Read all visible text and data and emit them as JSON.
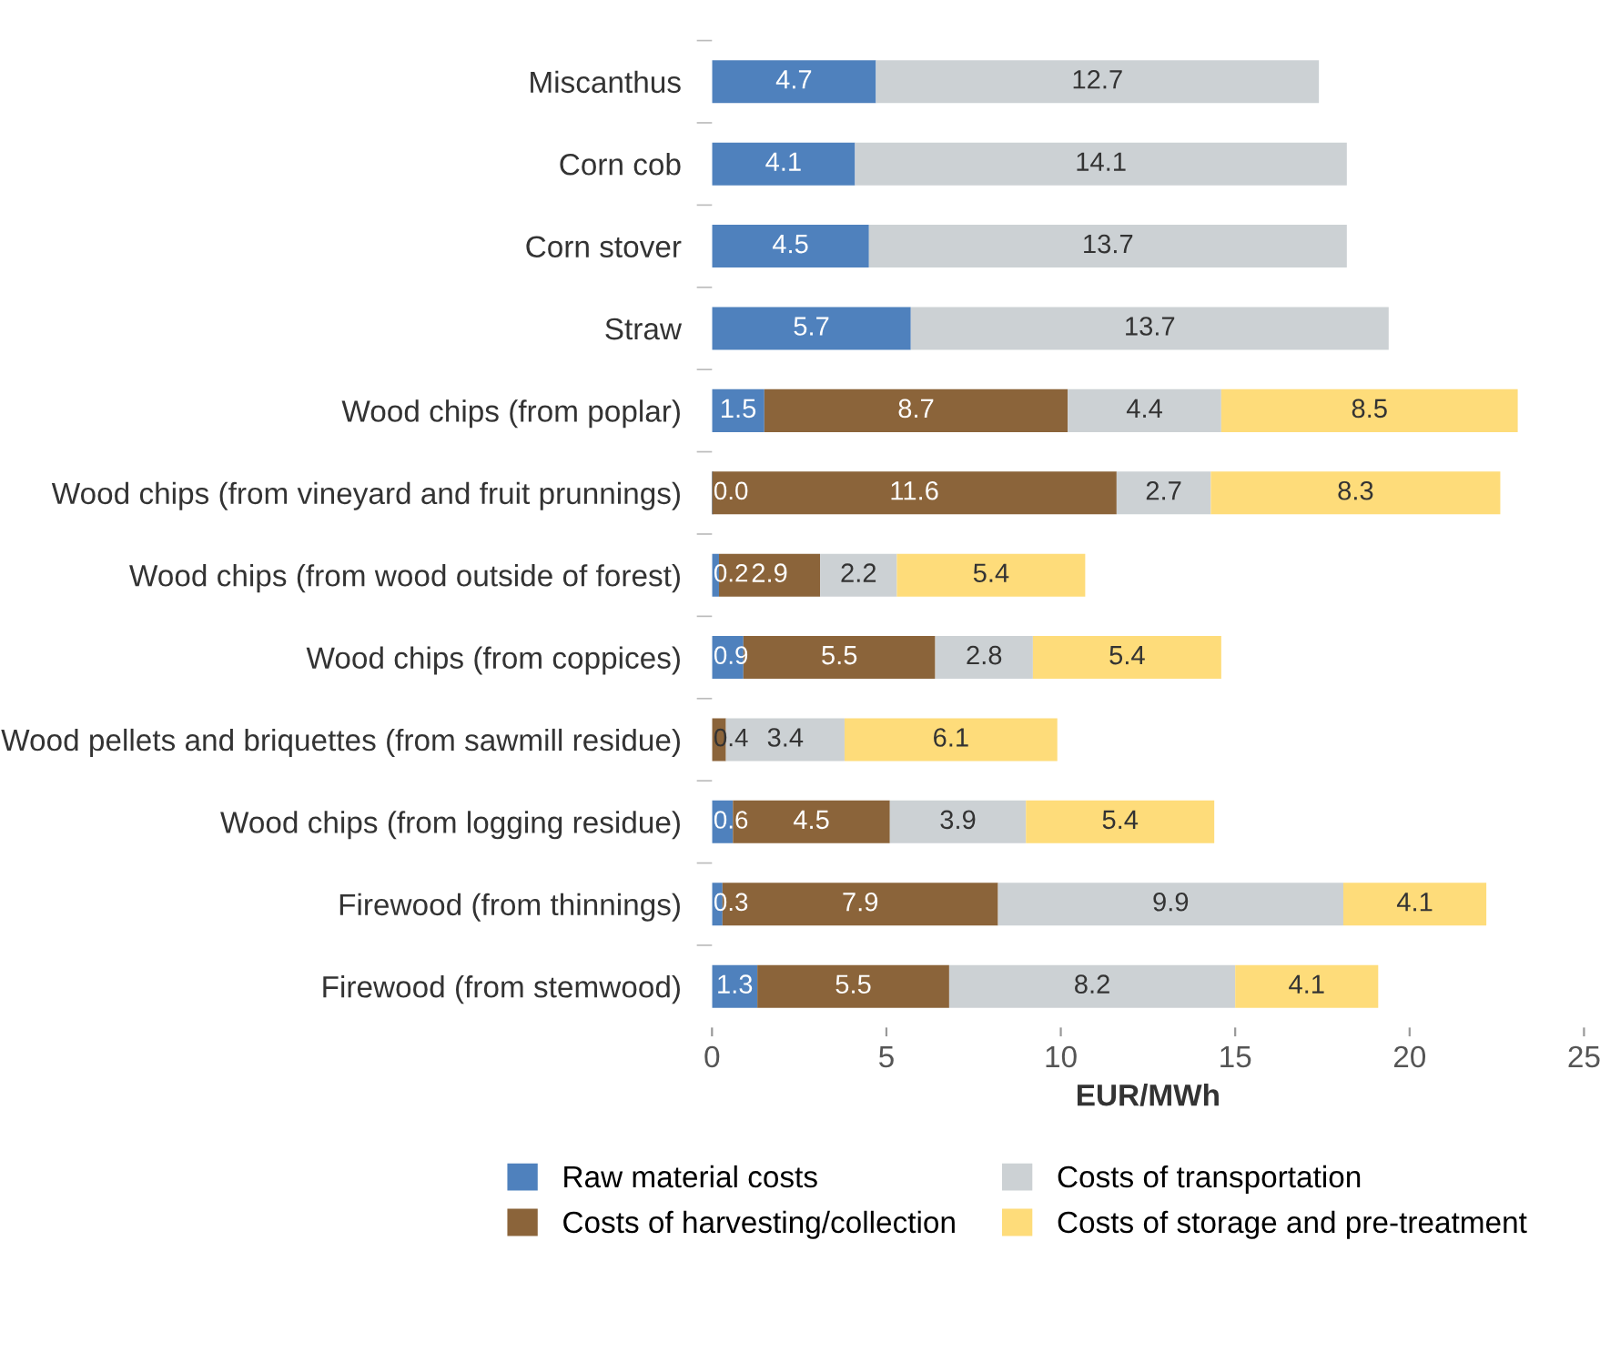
{
  "chart_data": {
    "type": "bar",
    "orientation": "horizontal",
    "stacked": true,
    "data_labels": true,
    "categories": [
      "Miscanthus",
      "Corn cob",
      "Corn stover",
      "Straw",
      "Wood chips (from poplar)",
      "Wood chips (from vineyard and fruit prunnings)",
      "Wood chips (from wood outside of forest)",
      "Wood chips (from coppices)",
      "Wood pellets and briquettes (from sawmill residue)",
      "Wood chips (from logging residue)",
      "Firewood (from thinnings)",
      "Firewood (from stemwood)"
    ],
    "series": [
      {
        "name": "Raw material costs",
        "color": "#4f81bd",
        "values": [
          4.7,
          4.1,
          4.5,
          5.7,
          1.5,
          0.0,
          0.2,
          0.9,
          null,
          0.6,
          0.3,
          1.3
        ],
        "value_labels": [
          "4.7",
          "4.1",
          "4.5",
          "5.7",
          "1.5",
          "0.0",
          "0.2",
          "0.9",
          null,
          "0.6",
          "0.3",
          "1.3"
        ]
      },
      {
        "name": "Costs of harvesting/collection",
        "color": "#8b643a",
        "values": [
          null,
          null,
          null,
          null,
          8.7,
          11.6,
          2.9,
          5.5,
          0.4,
          4.5,
          7.9,
          5.5
        ]
      },
      {
        "name": "Costs of transportation",
        "color": "#ccd1d4",
        "values": [
          12.7,
          14.1,
          13.7,
          13.7,
          4.4,
          2.7,
          2.2,
          2.8,
          3.4,
          3.9,
          9.9,
          8.2
        ]
      },
      {
        "name": "Costs of storage and pre-treatment",
        "color": "#fedc7a",
        "values": [
          null,
          null,
          null,
          null,
          8.5,
          8.3,
          5.4,
          5.4,
          6.1,
          5.4,
          4.1,
          4.1
        ]
      }
    ],
    "xlim": [
      0,
      25
    ],
    "xticks": [
      0,
      5,
      10,
      15,
      20,
      25
    ],
    "xlabel": "EUR/MWh",
    "grid": false,
    "legend": "bottom"
  }
}
